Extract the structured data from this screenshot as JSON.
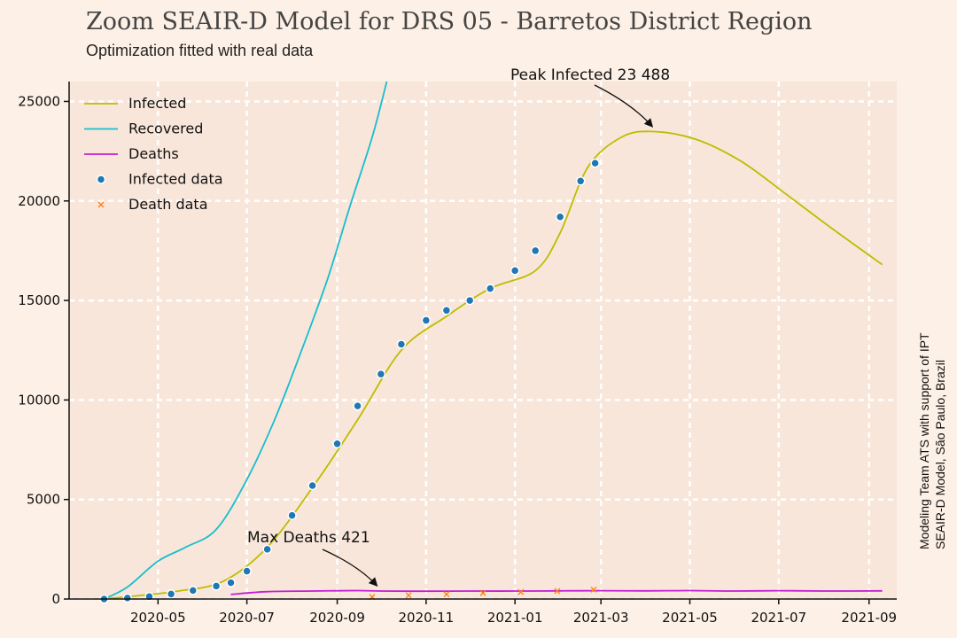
{
  "chart_data": {
    "type": "line",
    "title": "Zoom SEAIR-D Model for DRS 05 - Barretos District Region",
    "subtitle": "Optimization fitted with real data",
    "credit_line1": "Modeling Team ATS with support of IPT",
    "credit_line2": "SEAIR-D Model, São Paulo, Brazil",
    "xlabel": "",
    "ylabel": "",
    "x_ticks": [
      "2020-05",
      "2020-07",
      "2020-09",
      "2020-11",
      "2021-01",
      "2021-03",
      "2021-05",
      "2021-07",
      "2021-09"
    ],
    "y_ticks": [
      0,
      5000,
      10000,
      15000,
      20000,
      25000
    ],
    "xlim": [
      "2020-03-01",
      "2021-09-20"
    ],
    "ylim": [
      0,
      26000
    ],
    "grid": true,
    "legend_position": "top-left",
    "colors": {
      "infected": "#bdbd00",
      "recovered": "#17becf",
      "deaths": "#c21ed6",
      "infected_data": "#1f77b4",
      "death_data": "#ff7f0e",
      "background": "#fdf0e6",
      "plot_area": "#f9e6da"
    },
    "series": [
      {
        "name": "Infected",
        "kind": "line",
        "x": [
          "2020-03-25",
          "2020-04-15",
          "2020-05-15",
          "2020-06-15",
          "2020-07-15",
          "2020-08-15",
          "2020-09-15",
          "2020-10-15",
          "2020-11-15",
          "2020-12-15",
          "2021-01-15",
          "2021-02-01",
          "2021-02-20",
          "2021-03-15",
          "2021-04-05",
          "2021-05-05",
          "2021-06-05",
          "2021-07-05",
          "2021-08-05",
          "2021-09-10"
        ],
        "y": [
          0,
          150,
          400,
          900,
          2600,
          5600,
          9000,
          12500,
          14200,
          15600,
          16500,
          18400,
          21700,
          23200,
          23488,
          23100,
          22000,
          20400,
          18700,
          16800
        ]
      },
      {
        "name": "Recovered",
        "kind": "line",
        "x": [
          "2020-03-25",
          "2020-04-10",
          "2020-05-01",
          "2020-05-20",
          "2020-06-10",
          "2020-07-01",
          "2020-07-20",
          "2020-08-05",
          "2020-08-25",
          "2020-09-10",
          "2020-09-25",
          "2020-10-05"
        ],
        "y": [
          0,
          600,
          1900,
          2600,
          3500,
          6000,
          9000,
          12000,
          16000,
          19800,
          23200,
          26000
        ]
      },
      {
        "name": "Deaths",
        "kind": "line",
        "x": [
          "2020-06-20",
          "2020-07-15",
          "2020-08-15",
          "2020-09-15",
          "2020-10-01",
          "2020-11-01",
          "2020-12-01",
          "2021-01-01",
          "2021-02-01",
          "2021-03-01",
          "2021-04-01",
          "2021-05-01",
          "2021-06-01",
          "2021-07-01",
          "2021-08-01",
          "2021-09-10"
        ],
        "y": [
          230,
          370,
          400,
          421,
          400,
          390,
          400,
          400,
          410,
          420,
          410,
          421,
          400,
          420,
          400,
          410
        ]
      },
      {
        "name": "Infected data",
        "kind": "scatter",
        "x": [
          "2020-03-25",
          "2020-04-10",
          "2020-04-25",
          "2020-05-10",
          "2020-05-25",
          "2020-06-10",
          "2020-06-20",
          "2020-07-01",
          "2020-07-15",
          "2020-08-01",
          "2020-08-15",
          "2020-09-01",
          "2020-09-15",
          "2020-10-01",
          "2020-10-15",
          "2020-11-01",
          "2020-11-15",
          "2020-12-01",
          "2020-12-15",
          "2021-01-01",
          "2021-01-15",
          "2021-02-01",
          "2021-02-15",
          "2021-02-25"
        ],
        "y": [
          0,
          50,
          120,
          250,
          430,
          650,
          820,
          1400,
          2500,
          4200,
          5700,
          7800,
          9700,
          11300,
          12800,
          14000,
          14500,
          15000,
          15600,
          16500,
          17500,
          19200,
          21000,
          21900
        ]
      },
      {
        "name": "Death data",
        "kind": "scatter",
        "x": [
          "2020-09-25",
          "2020-10-20",
          "2020-11-15",
          "2020-12-10",
          "2021-01-05",
          "2021-01-30",
          "2021-02-24"
        ],
        "y": [
          100,
          180,
          240,
          300,
          350,
          400,
          470
        ]
      }
    ],
    "annotations": [
      {
        "text": "Peak Infected 23 488",
        "x": "2021-04-05",
        "y": 23488
      },
      {
        "text": "Max Deaths 421",
        "x": "2020-09-28",
        "y": 421
      }
    ]
  }
}
